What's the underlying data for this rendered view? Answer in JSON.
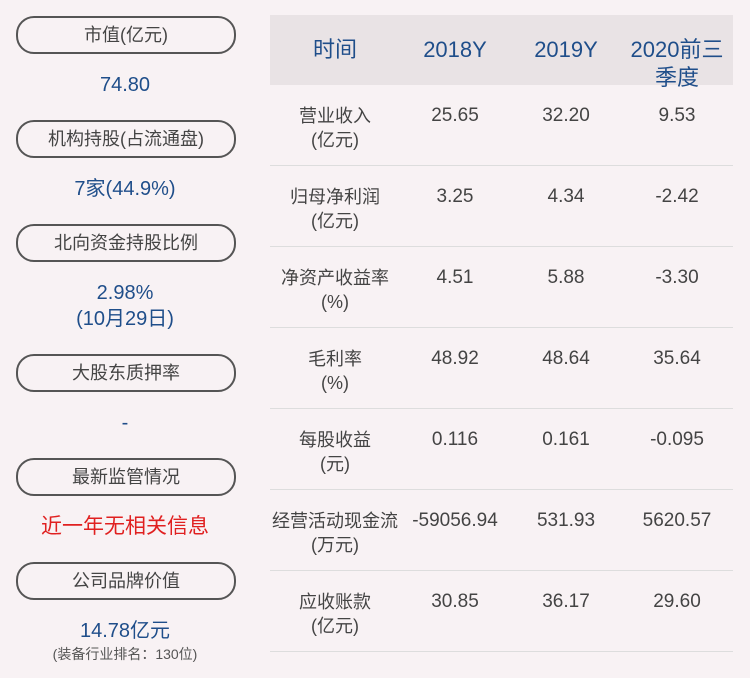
{
  "left_panel": [
    {
      "label": "市值(亿元)",
      "value": [
        "74.80"
      ]
    },
    {
      "label": "机构持股(占流通盘)",
      "value": [
        "7家(44.9%)"
      ]
    },
    {
      "label": "北向资金持股比例",
      "value": [
        "2.98%",
        "(10月29日)"
      ]
    },
    {
      "label": "大股东质押率",
      "value": [
        "-"
      ]
    },
    {
      "label": "最新监管情况",
      "value": [
        "近一年无相关信息"
      ],
      "highlight": true
    },
    {
      "label": "公司品牌价值",
      "value": [
        "14.78亿元"
      ],
      "note": "(装备行业排名：130位)"
    }
  ],
  "table": {
    "header": [
      "时间",
      "2018Y",
      "2019Y",
      "2020前三季度"
    ],
    "rows": [
      {
        "label": [
          "营业收入",
          "(亿元)"
        ],
        "cells": [
          "25.65",
          "32.20",
          "9.53"
        ]
      },
      {
        "label": [
          "归母净利润",
          "(亿元)"
        ],
        "cells": [
          "3.25",
          "4.34",
          "-2.42"
        ]
      },
      {
        "label": [
          "净资产收益率",
          "(%)"
        ],
        "cells": [
          "4.51",
          "5.88",
          "-3.30"
        ]
      },
      {
        "label": [
          "毛利率",
          "(%)"
        ],
        "cells": [
          "48.92",
          "48.64",
          "35.64"
        ]
      },
      {
        "label": [
          "每股收益",
          "(元)"
        ],
        "cells": [
          "0.116",
          "0.161",
          "-0.095"
        ]
      },
      {
        "label": [
          "经营活动现金流",
          "(万元)"
        ],
        "cells": [
          "-59056.94",
          "531.93",
          "5620.57"
        ]
      },
      {
        "label": [
          "应收账款",
          "(亿元)"
        ],
        "cells": [
          "30.85",
          "36.17",
          "29.60"
        ]
      }
    ]
  }
}
